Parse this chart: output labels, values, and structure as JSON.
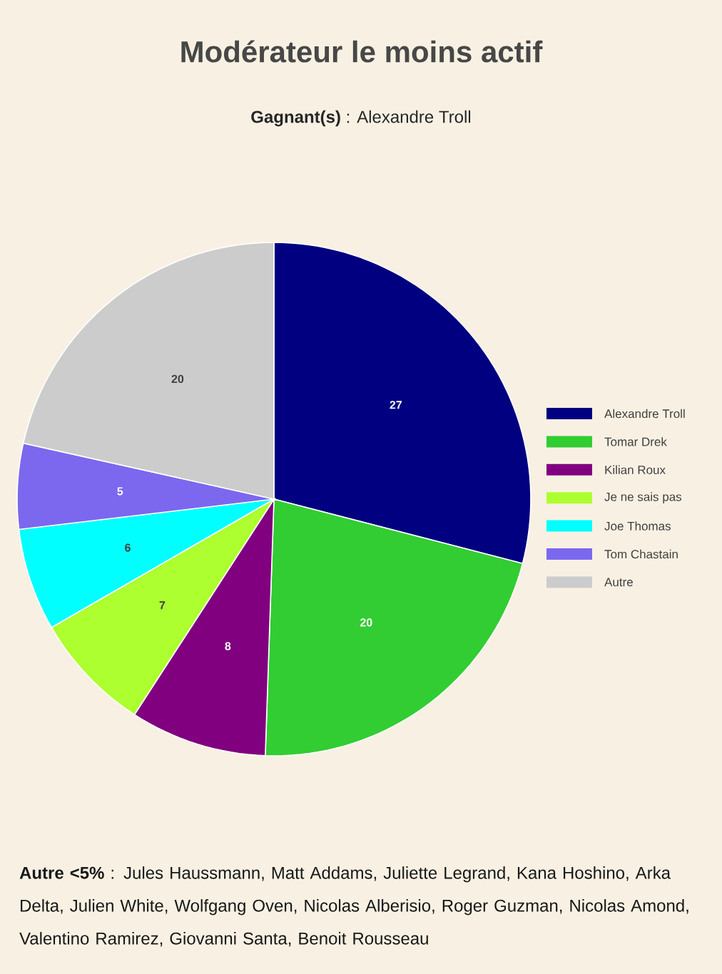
{
  "chart_data": {
    "type": "pie",
    "title": "Modérateur le moins actif",
    "subtitle": "**Gagnant(s)** : Alexandre Troll",
    "categories": [
      "Alexandre Troll",
      "Tomar Drek",
      "Kilian Roux",
      "Je ne sais pas",
      "Joe Thomas",
      "Tom Chastain",
      "Autre"
    ],
    "values": [
      27,
      20,
      8,
      7,
      6,
      5,
      20
    ],
    "colors": [
      "#000080",
      "#32cd32",
      "#800080",
      "#adff2f",
      "#00ffff",
      "#7b68ee",
      "#cccccc"
    ],
    "data_labels": true,
    "legend": "right",
    "annotations": [
      "**Autre <5%** : Jules Haussmann, Matt Addams, Juliette Legrand, Kana Hoshino, Arka Delta, Julien White, Wolfgang Oven, Nicolas Alberisio, Roger Guzman, Nicolas Amond, Valentino Ramirez, Giovanni Santa, Benoit Rousseau"
    ]
  }
}
